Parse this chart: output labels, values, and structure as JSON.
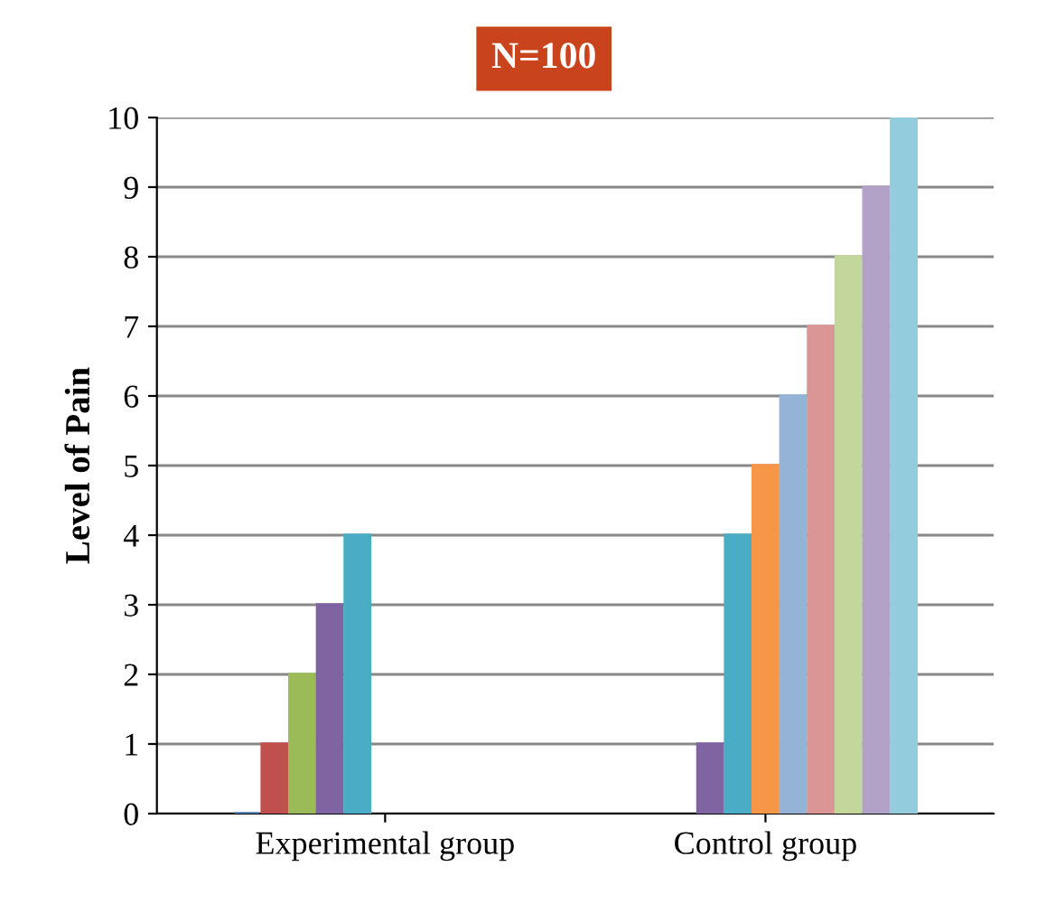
{
  "chart_data": {
    "type": "bar",
    "title": "N=100",
    "ylabel": "Level of Pain",
    "categories": [
      "Experimental group",
      "Control group"
    ],
    "series": [
      {
        "color": "#4f81bd",
        "values": [
          0,
          null
        ]
      },
      {
        "color": "#c0504d",
        "values": [
          1,
          null
        ]
      },
      {
        "color": "#9bbb59",
        "values": [
          2,
          null
        ]
      },
      {
        "color": "#8064a2",
        "values": [
          3,
          1
        ]
      },
      {
        "color": "#4bacc6",
        "values": [
          4,
          4
        ]
      },
      {
        "color": "#f79646",
        "values": [
          null,
          5
        ]
      },
      {
        "color": "#95b3d7",
        "values": [
          null,
          6
        ]
      },
      {
        "color": "#d99694",
        "values": [
          null,
          7
        ]
      },
      {
        "color": "#c3d69b",
        "values": [
          null,
          8
        ]
      },
      {
        "color": "#b3a2c7",
        "values": [
          null,
          9
        ]
      },
      {
        "color": "#93cddd",
        "values": [
          null,
          10
        ]
      }
    ],
    "ylim": [
      0,
      10
    ],
    "yticks": [
      0,
      1,
      2,
      3,
      4,
      5,
      6,
      7,
      8,
      9,
      10
    ],
    "grid": "y"
  }
}
